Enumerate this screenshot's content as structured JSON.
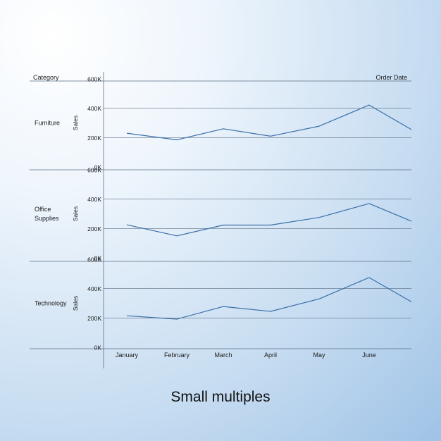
{
  "caption": "Small multiples",
  "colors": {
    "line": "#3a6fa8",
    "grid": "#5a6e82"
  },
  "chart_data": {
    "type": "line",
    "title": "",
    "row_header": "Category",
    "column_header": "Order Date",
    "ylabel": "Sales",
    "yticks": [
      "0K",
      "200K",
      "400K",
      "600K"
    ],
    "ylim": [
      0,
      600000
    ],
    "x": [
      "January",
      "February",
      "March",
      "April",
      "May",
      "June",
      ""
    ],
    "panels": [
      {
        "name": "Furniture",
        "values": [
          230000,
          185000,
          260000,
          210000,
          278000,
          422000,
          255000
        ]
      },
      {
        "name": "Office Supplies",
        "values": [
          225000,
          150000,
          223000,
          223000,
          275000,
          370000,
          250000
        ]
      },
      {
        "name": "Technology",
        "values": [
          215000,
          192000,
          278000,
          245000,
          330000,
          475000,
          310000
        ]
      }
    ],
    "grid": true,
    "legend": "none"
  }
}
